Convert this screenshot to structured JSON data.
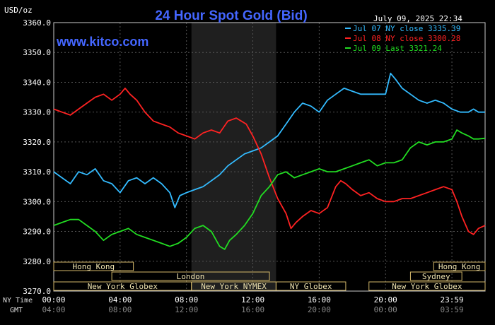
{
  "chart_data": {
    "type": "line",
    "title": "24 Hour Spot Gold (Bid)",
    "ylabel": "USD/oz",
    "watermark": "www.kitco.com",
    "timestamp": "July 09, 2025 22:34",
    "ylim": [
      3270,
      3360
    ],
    "y_ticks": [
      "3360.0",
      "3350.0",
      "3340.0",
      "3330.0",
      "3320.0",
      "3310.0",
      "3300.0",
      "3290.0",
      "3280.0",
      "3270.0"
    ],
    "x_ticks_ny": [
      "00:00",
      "04:00",
      "08:00",
      "12:00",
      "16:00",
      "20:00",
      "23:59"
    ],
    "x_ticks_gmt": [
      "04:00",
      "08:00",
      "12:00",
      "16:00",
      "20:00",
      "00:00",
      "03:59"
    ],
    "axis_row_labels": {
      "ny": "NY Time",
      "gmt": "GMT"
    },
    "grid": true,
    "legend_position": "top-right",
    "series": [
      {
        "name": "Jul 07 NY close 3335.39",
        "color": "#33bbff",
        "points": [
          [
            0,
            3310
          ],
          [
            0.5,
            3308
          ],
          [
            1,
            3306
          ],
          [
            1.5,
            3310
          ],
          [
            2,
            3309
          ],
          [
            2.5,
            3311
          ],
          [
            3,
            3307
          ],
          [
            3.5,
            3306
          ],
          [
            4,
            3303
          ],
          [
            4.5,
            3307
          ],
          [
            5,
            3308
          ],
          [
            5.5,
            3306
          ],
          [
            6,
            3308
          ],
          [
            6.5,
            3306
          ],
          [
            7,
            3303
          ],
          [
            7.3,
            3298
          ],
          [
            7.6,
            3302
          ],
          [
            8,
            3303
          ],
          [
            8.5,
            3304
          ],
          [
            9,
            3305
          ],
          [
            9.5,
            3307
          ],
          [
            10,
            3309
          ],
          [
            10.5,
            3312
          ],
          [
            11,
            3314
          ],
          [
            11.5,
            3316
          ],
          [
            12,
            3317
          ],
          [
            12.5,
            3318
          ],
          [
            13,
            3320
          ],
          [
            13.5,
            3322
          ],
          [
            14,
            3326
          ],
          [
            14.5,
            3330
          ],
          [
            15,
            3333
          ],
          [
            15.5,
            3332
          ],
          [
            16,
            3330
          ],
          [
            16.5,
            3334
          ],
          [
            17,
            3336
          ],
          [
            17.5,
            3338
          ],
          [
            18,
            3337
          ],
          [
            18.5,
            3336
          ],
          [
            19,
            3336
          ],
          [
            19.5,
            3336
          ],
          [
            20,
            3336
          ],
          [
            20.3,
            3343
          ],
          [
            20.6,
            3341
          ],
          [
            21,
            3338
          ],
          [
            21.5,
            3336
          ],
          [
            22,
            3334
          ],
          [
            22.5,
            3333
          ],
          [
            23,
            3334
          ],
          [
            23.5,
            3333
          ],
          [
            24,
            3331
          ],
          [
            24.5,
            3330
          ],
          [
            25,
            3330
          ],
          [
            25.3,
            3331
          ],
          [
            25.6,
            3330
          ],
          [
            26,
            3330
          ]
        ]
      },
      {
        "name": "Jul 08 NY close 3300.28",
        "color": "#ff2222",
        "points": [
          [
            0,
            3331
          ],
          [
            0.5,
            3330
          ],
          [
            1,
            3329
          ],
          [
            1.5,
            3331
          ],
          [
            2,
            3333
          ],
          [
            2.5,
            3335
          ],
          [
            3,
            3336
          ],
          [
            3.5,
            3334
          ],
          [
            4,
            3336
          ],
          [
            4.3,
            3338
          ],
          [
            4.6,
            3336
          ],
          [
            5,
            3334
          ],
          [
            5.5,
            3330
          ],
          [
            6,
            3327
          ],
          [
            6.5,
            3326
          ],
          [
            7,
            3325
          ],
          [
            7.5,
            3323
          ],
          [
            8,
            3322
          ],
          [
            8.5,
            3321
          ],
          [
            9,
            3323
          ],
          [
            9.5,
            3324
          ],
          [
            10,
            3323
          ],
          [
            10.5,
            3327
          ],
          [
            11,
            3328
          ],
          [
            11.3,
            3327
          ],
          [
            11.6,
            3326
          ],
          [
            12,
            3322
          ],
          [
            12.5,
            3316
          ],
          [
            13,
            3308
          ],
          [
            13.5,
            3301
          ],
          [
            14,
            3296
          ],
          [
            14.3,
            3291
          ],
          [
            14.6,
            3293
          ],
          [
            15,
            3295
          ],
          [
            15.5,
            3297
          ],
          [
            16,
            3296
          ],
          [
            16.5,
            3298
          ],
          [
            17,
            3305
          ],
          [
            17.3,
            3307
          ],
          [
            17.6,
            3306
          ],
          [
            18,
            3304
          ],
          [
            18.5,
            3302
          ],
          [
            19,
            3303
          ],
          [
            19.5,
            3301
          ],
          [
            20,
            3300
          ],
          [
            20.5,
            3300
          ],
          [
            21,
            3301
          ],
          [
            21.5,
            3301
          ],
          [
            22,
            3302
          ],
          [
            22.5,
            3303
          ],
          [
            23,
            3304
          ],
          [
            23.5,
            3305
          ],
          [
            24,
            3304
          ],
          [
            24.3,
            3300
          ],
          [
            24.6,
            3295
          ],
          [
            25,
            3290
          ],
          [
            25.3,
            3289
          ],
          [
            25.6,
            3291
          ],
          [
            26,
            3292
          ]
        ]
      },
      {
        "name": "Jul 09 Last 3321.24",
        "color": "#22dd22",
        "points": [
          [
            0,
            3292
          ],
          [
            0.5,
            3293
          ],
          [
            1,
            3294
          ],
          [
            1.5,
            3294
          ],
          [
            2,
            3292
          ],
          [
            2.5,
            3290
          ],
          [
            3,
            3287
          ],
          [
            3.5,
            3289
          ],
          [
            4,
            3290
          ],
          [
            4.5,
            3291
          ],
          [
            5,
            3289
          ],
          [
            5.5,
            3288
          ],
          [
            6,
            3287
          ],
          [
            6.5,
            3286
          ],
          [
            7,
            3285
          ],
          [
            7.5,
            3286
          ],
          [
            8,
            3288
          ],
          [
            8.5,
            3291
          ],
          [
            9,
            3292
          ],
          [
            9.5,
            3290
          ],
          [
            10,
            3285
          ],
          [
            10.3,
            3284
          ],
          [
            10.6,
            3287
          ],
          [
            11,
            3289
          ],
          [
            11.5,
            3292
          ],
          [
            12,
            3296
          ],
          [
            12.5,
            3302
          ],
          [
            13,
            3305
          ],
          [
            13.5,
            3309
          ],
          [
            14,
            3310
          ],
          [
            14.5,
            3308
          ],
          [
            15,
            3309
          ],
          [
            15.5,
            3310
          ],
          [
            16,
            3311
          ],
          [
            16.5,
            3310
          ],
          [
            17,
            3310
          ],
          [
            17.5,
            3311
          ],
          [
            18,
            3312
          ],
          [
            18.5,
            3313
          ],
          [
            19,
            3314
          ],
          [
            19.5,
            3312
          ],
          [
            20,
            3313
          ],
          [
            20.5,
            3313
          ],
          [
            21,
            3314
          ],
          [
            21.5,
            3318
          ],
          [
            22,
            3320
          ],
          [
            22.5,
            3319
          ],
          [
            23,
            3320
          ],
          [
            23.5,
            3320
          ],
          [
            24,
            3321
          ],
          [
            24.3,
            3324
          ],
          [
            24.6,
            3323
          ],
          [
            25,
            3322
          ],
          [
            25.3,
            3321
          ],
          [
            25.6,
            3321
          ],
          [
            26,
            3321.24
          ]
        ]
      }
    ],
    "sessions": [
      {
        "label": "Hong Kong",
        "row": 0,
        "start": -0.2,
        "end": 4.8
      },
      {
        "label": "London",
        "row": 1,
        "start": 3.5,
        "end": 13.0
      },
      {
        "label": "New York Globex",
        "row": 2,
        "start": -0.2,
        "end": 8.3
      },
      {
        "label": "New York NYMEX",
        "row": 2,
        "start": 8.3,
        "end": 13.4
      },
      {
        "label": "NY Globex",
        "row": 2,
        "start": 13.4,
        "end": 17.6
      },
      {
        "label": "Hong Kong",
        "row": 0,
        "start": 22.9,
        "end": 26.5
      },
      {
        "label": "Sydney",
        "row": 1,
        "start": 21.5,
        "end": 24.6
      },
      {
        "label": "New York Globex",
        "row": 2,
        "start": 19.0,
        "end": 26.5
      }
    ],
    "shaded_region": [
      8.3,
      13.4
    ]
  }
}
